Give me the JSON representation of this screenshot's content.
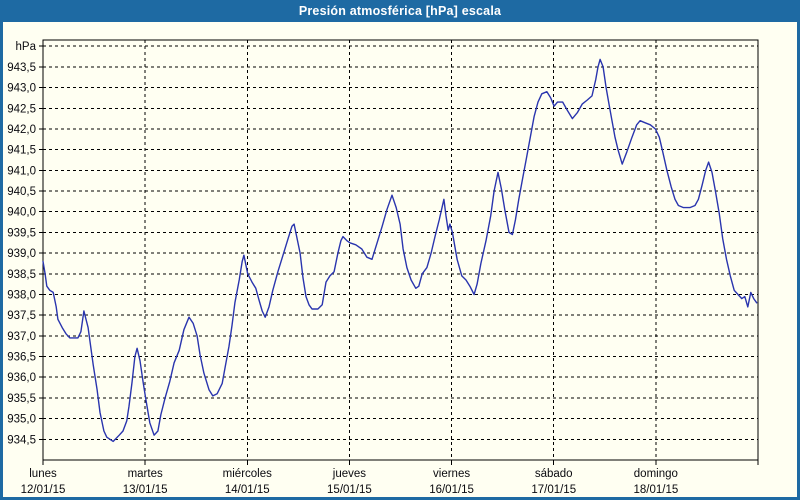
{
  "window": {
    "title": "Presión atmosférica [hPa] escala"
  },
  "colors": {
    "title_bar": "#1e6aa3",
    "window_border": "#1e6aa3",
    "background": "#fffff2",
    "grid": "#000000",
    "frame": "#000000",
    "series_line": "#2a35ae",
    "label_text": "#0a0a0f",
    "title_text": "#ffffff"
  },
  "chart_data": {
    "type": "line",
    "title": "Presión atmosférica [hPa] escala",
    "ylabel": "hPa",
    "unit_label": "hPa",
    "grid": true,
    "legend": "none",
    "ylim": [
      934.0,
      944.15
    ],
    "y_top_grid": 944.0,
    "y_tick_step": 0.5,
    "y_tick_labels": [
      "943,5",
      "943,0",
      "942,5",
      "942,0",
      "941,5",
      "941,0",
      "940,5",
      "940,0",
      "939,5",
      "939,0",
      "938,5",
      "938,0",
      "937,5",
      "937,0",
      "936,5",
      "936,0",
      "935,5",
      "935,0",
      "934,5"
    ],
    "x_days": [
      {
        "name": "lunes",
        "date": "12/01/15"
      },
      {
        "name": "martes",
        "date": "13/01/15"
      },
      {
        "name": "miércoles",
        "date": "14/01/15"
      },
      {
        "name": "jueves",
        "date": "15/01/15"
      },
      {
        "name": "viernes",
        "date": "16/01/15"
      },
      {
        "name": "sábado",
        "date": "17/01/15"
      },
      {
        "name": "domingo",
        "date": "18/01/15"
      }
    ],
    "series": [
      {
        "name": "Presión atmosférica",
        "unit": "hPa",
        "x_unit": "hours from lunes 12/01/15 00:00",
        "color": "#2a35ae",
        "points": [
          [
            0.0,
            938.8
          ],
          [
            0.5,
            938.5
          ],
          [
            0.9,
            938.2
          ],
          [
            1.6,
            938.1
          ],
          [
            2.4,
            938.05
          ],
          [
            3.1,
            937.7
          ],
          [
            3.5,
            937.4
          ],
          [
            4.5,
            937.2
          ],
          [
            5.4,
            937.05
          ],
          [
            6.3,
            936.95
          ],
          [
            8.2,
            936.95
          ],
          [
            8.9,
            937.1
          ],
          [
            9.6,
            937.6
          ],
          [
            10.6,
            937.2
          ],
          [
            11.8,
            936.3
          ],
          [
            12.7,
            935.7
          ],
          [
            13.4,
            935.15
          ],
          [
            14.3,
            934.7
          ],
          [
            15.0,
            934.55
          ],
          [
            16.5,
            934.45
          ],
          [
            17.9,
            934.6
          ],
          [
            18.8,
            934.7
          ],
          [
            19.7,
            934.95
          ],
          [
            20.2,
            935.3
          ],
          [
            20.9,
            935.85
          ],
          [
            21.6,
            936.5
          ],
          [
            22.1,
            936.7
          ],
          [
            22.8,
            936.4
          ],
          [
            23.5,
            935.9
          ],
          [
            24.1,
            935.5
          ],
          [
            25.1,
            934.9
          ],
          [
            26.1,
            934.6
          ],
          [
            27.0,
            934.7
          ],
          [
            27.7,
            935.1
          ],
          [
            28.7,
            935.5
          ],
          [
            29.8,
            935.9
          ],
          [
            30.8,
            936.35
          ],
          [
            32.0,
            936.65
          ],
          [
            33.1,
            937.15
          ],
          [
            34.3,
            937.45
          ],
          [
            35.3,
            937.3
          ],
          [
            36.2,
            937.0
          ],
          [
            36.9,
            936.55
          ],
          [
            37.8,
            936.1
          ],
          [
            39.0,
            935.7
          ],
          [
            39.9,
            935.55
          ],
          [
            40.9,
            935.6
          ],
          [
            42.1,
            935.85
          ],
          [
            42.8,
            936.25
          ],
          [
            43.7,
            936.75
          ],
          [
            44.4,
            937.25
          ],
          [
            45.1,
            937.8
          ],
          [
            46.1,
            938.35
          ],
          [
            46.8,
            938.8
          ],
          [
            47.2,
            938.95
          ],
          [
            48.1,
            938.5
          ],
          [
            49.1,
            938.3
          ],
          [
            50.0,
            938.15
          ],
          [
            50.8,
            937.85
          ],
          [
            51.5,
            937.6
          ],
          [
            52.2,
            937.45
          ],
          [
            53.1,
            937.7
          ],
          [
            54.0,
            938.1
          ],
          [
            55.2,
            938.55
          ],
          [
            56.4,
            938.95
          ],
          [
            57.6,
            939.35
          ],
          [
            58.5,
            939.65
          ],
          [
            59.0,
            939.7
          ],
          [
            59.7,
            939.35
          ],
          [
            60.4,
            939.0
          ],
          [
            61.1,
            938.4
          ],
          [
            61.8,
            937.95
          ],
          [
            62.5,
            937.75
          ],
          [
            63.2,
            937.65
          ],
          [
            64.6,
            937.65
          ],
          [
            65.6,
            937.75
          ],
          [
            66.5,
            938.3
          ],
          [
            67.4,
            938.45
          ],
          [
            68.4,
            938.55
          ],
          [
            69.3,
            939.0
          ],
          [
            70.0,
            939.3
          ],
          [
            70.5,
            939.4
          ],
          [
            71.4,
            939.3
          ],
          [
            72.1,
            939.25
          ],
          [
            73.5,
            939.2
          ],
          [
            74.9,
            939.1
          ],
          [
            76.1,
            938.9
          ],
          [
            77.3,
            938.85
          ],
          [
            78.5,
            939.25
          ],
          [
            79.7,
            939.65
          ],
          [
            80.8,
            940.05
          ],
          [
            82.0,
            940.4
          ],
          [
            83.0,
            940.1
          ],
          [
            83.9,
            939.7
          ],
          [
            84.6,
            939.1
          ],
          [
            85.5,
            938.65
          ],
          [
            86.5,
            938.35
          ],
          [
            87.6,
            938.15
          ],
          [
            88.3,
            938.2
          ],
          [
            89.1,
            938.5
          ],
          [
            90.2,
            938.65
          ],
          [
            91.2,
            939.0
          ],
          [
            92.1,
            939.4
          ],
          [
            93.1,
            939.8
          ],
          [
            94.2,
            940.3
          ],
          [
            94.7,
            939.9
          ],
          [
            95.2,
            939.55
          ],
          [
            95.6,
            939.7
          ],
          [
            96.2,
            939.5
          ],
          [
            97.3,
            938.85
          ],
          [
            98.4,
            938.45
          ],
          [
            99.4,
            938.35
          ],
          [
            100.3,
            938.2
          ],
          [
            101.3,
            938.0
          ],
          [
            102.0,
            938.25
          ],
          [
            102.9,
            938.75
          ],
          [
            104.1,
            939.3
          ],
          [
            105.2,
            939.9
          ],
          [
            106.0,
            940.5
          ],
          [
            106.9,
            940.95
          ],
          [
            107.7,
            940.55
          ],
          [
            108.5,
            940.05
          ],
          [
            109.5,
            939.5
          ],
          [
            110.3,
            939.45
          ],
          [
            111.0,
            939.8
          ],
          [
            111.8,
            940.3
          ],
          [
            112.7,
            940.8
          ],
          [
            113.6,
            941.3
          ],
          [
            114.5,
            941.8
          ],
          [
            115.4,
            942.3
          ],
          [
            116.3,
            942.65
          ],
          [
            117.2,
            942.85
          ],
          [
            118.4,
            942.9
          ],
          [
            119.3,
            942.75
          ],
          [
            120.1,
            942.55
          ],
          [
            120.9,
            942.65
          ],
          [
            122.1,
            942.65
          ],
          [
            123.2,
            942.45
          ],
          [
            124.4,
            942.25
          ],
          [
            125.6,
            942.4
          ],
          [
            126.7,
            942.6
          ],
          [
            127.9,
            942.7
          ],
          [
            129.0,
            942.8
          ],
          [
            129.9,
            943.2
          ],
          [
            130.4,
            943.5
          ],
          [
            130.9,
            943.68
          ],
          [
            131.6,
            943.5
          ],
          [
            132.3,
            943.0
          ],
          [
            133.0,
            942.6
          ],
          [
            133.7,
            942.2
          ],
          [
            134.4,
            941.8
          ],
          [
            135.1,
            941.5
          ],
          [
            136.1,
            941.15
          ],
          [
            137.2,
            941.45
          ],
          [
            138.4,
            941.8
          ],
          [
            139.5,
            942.1
          ],
          [
            140.3,
            942.2
          ],
          [
            141.5,
            942.15
          ],
          [
            142.7,
            942.1
          ],
          [
            143.9,
            942.0
          ],
          [
            144.8,
            941.8
          ],
          [
            145.6,
            941.45
          ],
          [
            146.6,
            941.0
          ],
          [
            147.6,
            940.6
          ],
          [
            148.5,
            940.3
          ],
          [
            149.3,
            940.15
          ],
          [
            150.5,
            940.1
          ],
          [
            152.0,
            940.1
          ],
          [
            153.2,
            940.15
          ],
          [
            154.0,
            940.3
          ],
          [
            154.9,
            940.65
          ],
          [
            155.7,
            941.0
          ],
          [
            156.4,
            941.2
          ],
          [
            157.2,
            940.95
          ],
          [
            158.0,
            940.5
          ],
          [
            158.9,
            939.95
          ],
          [
            159.7,
            939.35
          ],
          [
            160.6,
            938.85
          ],
          [
            161.5,
            938.45
          ],
          [
            162.4,
            938.1
          ],
          [
            163.3,
            938.0
          ],
          [
            164.2,
            937.9
          ],
          [
            164.9,
            937.95
          ],
          [
            165.6,
            937.7
          ],
          [
            166.3,
            938.05
          ],
          [
            167.0,
            937.9
          ],
          [
            167.7,
            937.8
          ]
        ]
      }
    ]
  }
}
